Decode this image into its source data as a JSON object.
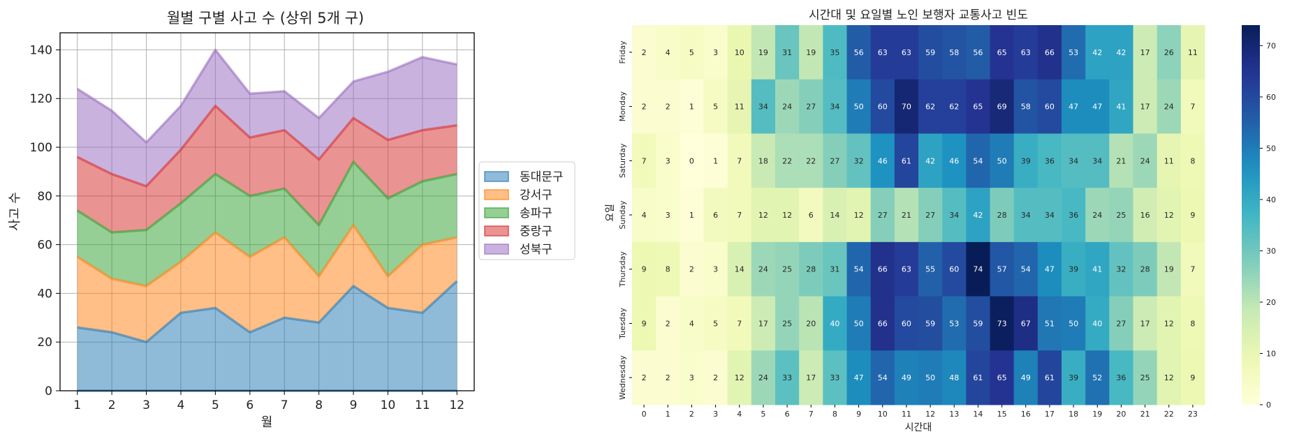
{
  "chart_data": [
    {
      "type": "area",
      "stacked": true,
      "title": "월별 구별 사고 수 (상위 5개 구)",
      "xlabel": "월",
      "ylabel": "사고 수",
      "x": [
        1,
        2,
        3,
        4,
        5,
        6,
        7,
        8,
        9,
        10,
        11,
        12
      ],
      "ylim": [
        0,
        147
      ],
      "yticks": [
        0,
        20,
        40,
        60,
        80,
        100,
        120,
        140
      ],
      "grid": true,
      "legend_position": "right",
      "series": [
        {
          "name": "동대문구",
          "color": "#1f77b4",
          "values": [
            26,
            24,
            20,
            32,
            34,
            24,
            30,
            28,
            43,
            34,
            32,
            45
          ]
        },
        {
          "name": "강서구",
          "color": "#ff7f0e",
          "values": [
            29,
            22,
            23,
            21,
            31,
            31,
            33,
            19,
            25,
            13,
            28,
            18
          ]
        },
        {
          "name": "송파구",
          "color": "#2ca02c",
          "values": [
            19,
            19,
            23,
            24,
            24,
            25,
            20,
            21,
            26,
            32,
            26,
            26
          ]
        },
        {
          "name": "중랑구",
          "color": "#d62728",
          "values": [
            22,
            24,
            18,
            22,
            28,
            24,
            24,
            27,
            18,
            24,
            21,
            20
          ]
        },
        {
          "name": "성북구",
          "color": "#9467bd",
          "values": [
            28,
            26,
            18,
            18,
            23,
            18,
            16,
            17,
            15,
            28,
            30,
            25
          ]
        }
      ]
    },
    {
      "type": "heatmap",
      "title": "시간대 및 요일별 노인 보행자 교통사고 빈도",
      "xlabel": "시간대",
      "ylabel": "요일",
      "x_categories": [
        "0",
        "1",
        "2",
        "3",
        "4",
        "5",
        "6",
        "7",
        "8",
        "9",
        "10",
        "11",
        "12",
        "13",
        "14",
        "15",
        "16",
        "17",
        "18",
        "19",
        "20",
        "21",
        "22",
        "23"
      ],
      "y_categories": [
        "Friday",
        "Monday",
        "Saturday",
        "Sunday",
        "Thursday",
        "Tuesday",
        "Wednesday"
      ],
      "values": [
        [
          2,
          4,
          5,
          3,
          10,
          19,
          31,
          19,
          35,
          56,
          63,
          63,
          59,
          58,
          56,
          65,
          63,
          66,
          53,
          42,
          42,
          17,
          26,
          11
        ],
        [
          2,
          2,
          1,
          5,
          11,
          34,
          24,
          27,
          34,
          50,
          60,
          70,
          62,
          62,
          65,
          69,
          58,
          60,
          47,
          47,
          41,
          17,
          24,
          7
        ],
        [
          7,
          3,
          0,
          1,
          7,
          18,
          22,
          22,
          27,
          32,
          46,
          61,
          42,
          46,
          54,
          50,
          39,
          36,
          34,
          34,
          21,
          24,
          11,
          8
        ],
        [
          4,
          3,
          1,
          6,
          7,
          12,
          12,
          6,
          14,
          12,
          27,
          21,
          27,
          34,
          42,
          28,
          34,
          34,
          36,
          24,
          25,
          16,
          12,
          9
        ],
        [
          9,
          8,
          2,
          3,
          14,
          24,
          25,
          28,
          31,
          54,
          66,
          63,
          55,
          60,
          74,
          57,
          54,
          47,
          39,
          41,
          32,
          28,
          19,
          7
        ],
        [
          9,
          2,
          4,
          5,
          7,
          17,
          25,
          20,
          40,
          50,
          66,
          60,
          59,
          53,
          59,
          73,
          67,
          51,
          50,
          40,
          27,
          17,
          12,
          8
        ],
        [
          2,
          2,
          3,
          2,
          12,
          24,
          33,
          17,
          33,
          47,
          54,
          49,
          50,
          48,
          61,
          65,
          49,
          61,
          39,
          52,
          36,
          25,
          12,
          9
        ]
      ],
      "colormap": "YlGnBu",
      "vmin": 0,
      "vmax": 74,
      "colorbar_ticks": [
        0,
        10,
        20,
        30,
        40,
        50,
        60,
        70
      ]
    }
  ]
}
